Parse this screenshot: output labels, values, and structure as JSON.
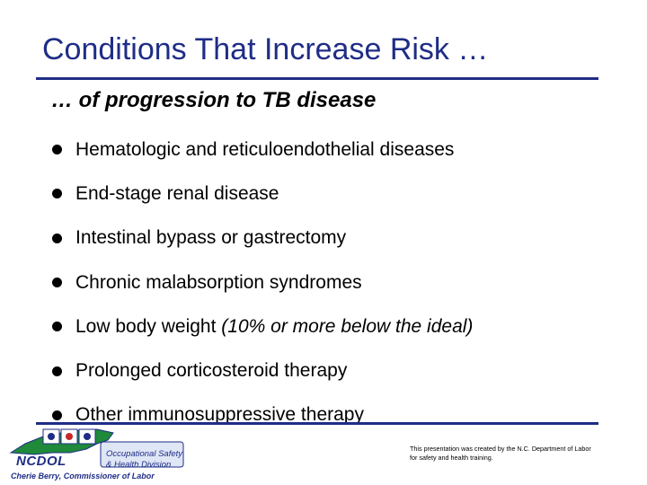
{
  "slide": {
    "title": "Conditions That Increase Risk …",
    "subtitle": "… of progression to TB disease",
    "bullets": [
      {
        "text": "Hematologic and reticuloendothelial diseases",
        "italic_suffix": ""
      },
      {
        "text": "End-stage renal disease",
        "italic_suffix": ""
      },
      {
        "text": "Intestinal bypass or gastrectomy",
        "italic_suffix": ""
      },
      {
        "text": "Chronic malabsorption syndromes",
        "italic_suffix": ""
      },
      {
        "text": "Low body weight ",
        "italic_suffix": "(10% or more below the ideal)"
      },
      {
        "text": "Prolonged corticosteroid therapy",
        "italic_suffix": ""
      },
      {
        "text": "Other immunosuppressive therapy",
        "italic_suffix": ""
      }
    ]
  },
  "footer": {
    "logo": {
      "name": "NCDOL",
      "division_line1": "Occupational Safety",
      "division_line2": "& Health Division",
      "commissioner": "Cherie Berry, Commissioner of Labor"
    },
    "note": "This presentation was created by the N.C. Department of Labor for safety and health training."
  },
  "colors": {
    "title": "#1f2d86",
    "rule": "#1f2d86",
    "state_shape": "#1f8a3a"
  }
}
